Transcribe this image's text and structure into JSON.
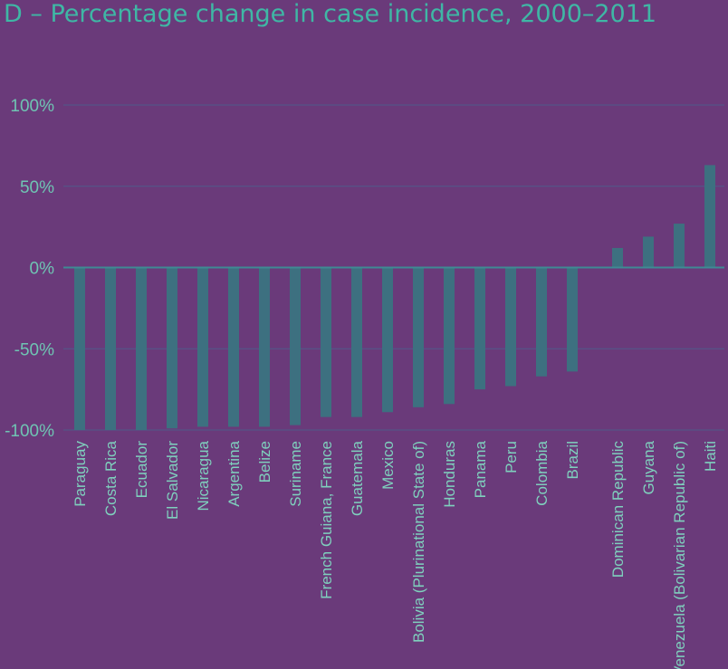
{
  "chart_data": {
    "type": "bar",
    "title": "D –  Percentage change in case incidence, 2000–2011",
    "xlabel": "",
    "ylabel": "",
    "ylim": [
      -100,
      100
    ],
    "yticks": [
      "100%",
      "50%",
      "0%",
      "-50%",
      "-100%"
    ],
    "ytick_values": [
      100,
      50,
      0,
      -50,
      -100
    ],
    "grid": true,
    "categories": [
      "Paraguay",
      "Costa Rica",
      "Ecuador",
      "El Salvador",
      "Nicaragua",
      "Argentina",
      "Belize",
      "Suriname",
      "French Guiana, France",
      "Guatemala",
      "Mexico",
      "Bolivia (Plurinational State of)",
      "Honduras",
      "Panama",
      "Peru",
      "Colombia",
      "Brazil",
      "Dominican Republic",
      "Guyana",
      "Venezuela (Bolivarian Republic of)",
      "Haiti"
    ],
    "values": [
      -100,
      -100,
      -100,
      -99,
      -98,
      -98,
      -98,
      -97,
      -92,
      -92,
      -89,
      -86,
      -84,
      -75,
      -73,
      -67,
      -64,
      12,
      19,
      27,
      63
    ],
    "colors": {
      "bar": "#3d7080",
      "grid": "#4f5a8a",
      "axis": "#3f8a94",
      "text": "#6fc4b3"
    }
  }
}
